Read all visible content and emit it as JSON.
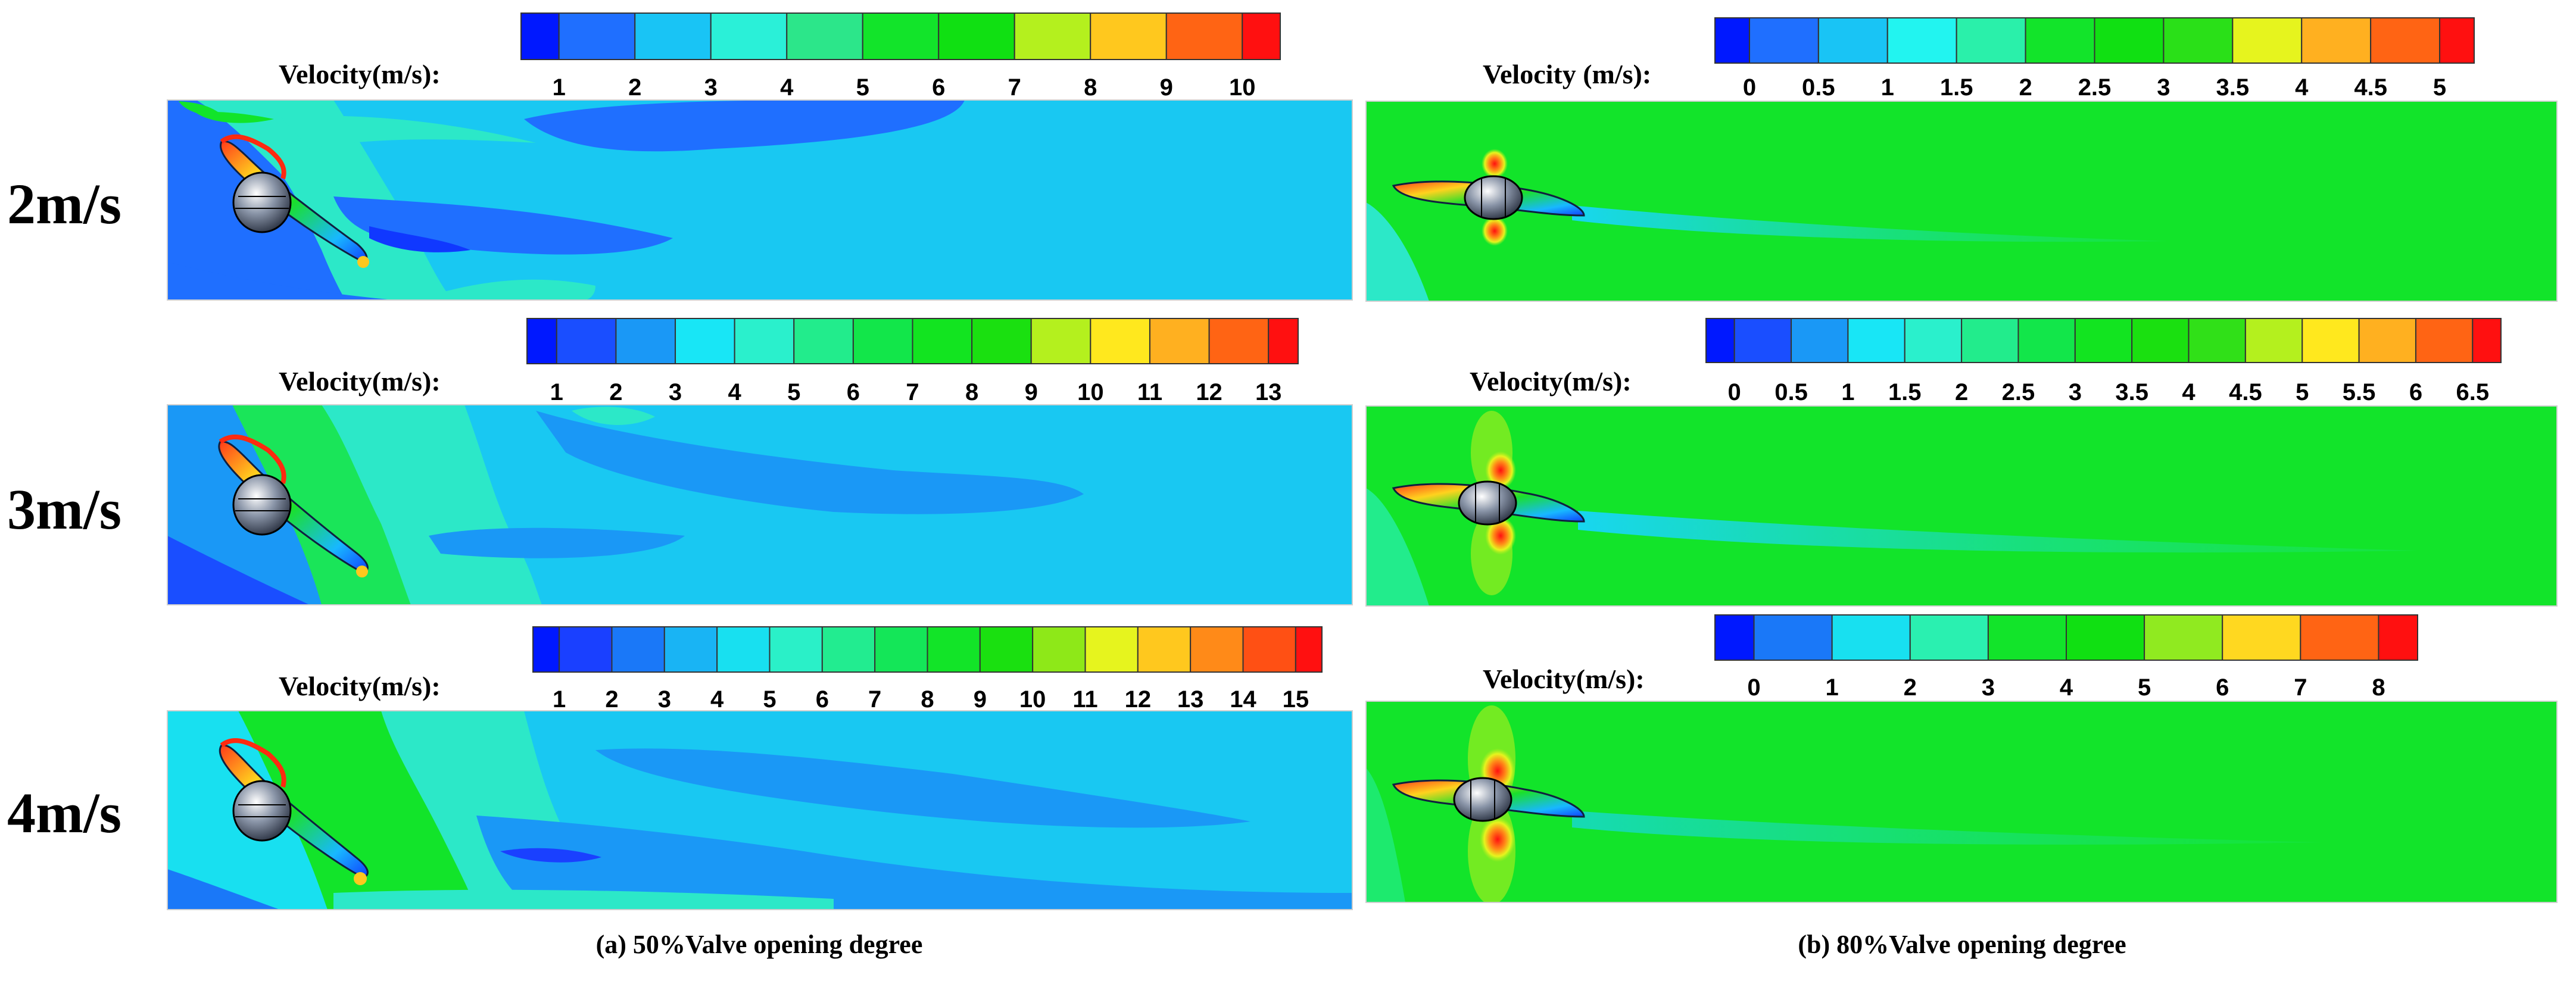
{
  "figure": {
    "columns": [
      {
        "caption": "(a) 50%Valve opening degree",
        "panels": [
          {
            "inlet_velocity": "2m/s",
            "colorbar_title": "Velocity(m/s):",
            "colorbar_ticks": [
              "1",
              "2",
              "3",
              "4",
              "5",
              "6",
              "7",
              "8",
              "9",
              "10"
            ],
            "colorbar_colors": [
              "#0018ff",
              "#1f6fff",
              "#19c4f5",
              "#2af0d8",
              "#2ce68a",
              "#12e42a",
              "#10e012",
              "#b4f01e",
              "#ffc81e",
              "#ff6414",
              "#ff1010"
            ]
          },
          {
            "inlet_velocity": "3m/s",
            "colorbar_title": "Velocity(m/s):",
            "colorbar_ticks": [
              "1",
              "2",
              "3",
              "4",
              "5",
              "6",
              "7",
              "8",
              "9",
              "10",
              "11",
              "12",
              "13"
            ],
            "colorbar_colors": [
              "#0018ff",
              "#1a4eff",
              "#1a98f6",
              "#18e6f6",
              "#2af0cc",
              "#22ec8c",
              "#12e64a",
              "#12e420",
              "#1ae010",
              "#b4f01e",
              "#ffe81e",
              "#ffb020",
              "#ff6414",
              "#ff1010"
            ]
          },
          {
            "inlet_velocity": "4m/s",
            "colorbar_title": "Velocity(m/s):",
            "colorbar_ticks": [
              "1",
              "2",
              "3",
              "4",
              "5",
              "6",
              "7",
              "8",
              "9",
              "10",
              "11",
              "12",
              "13",
              "14",
              "15"
            ],
            "colorbar_colors": [
              "#0018ff",
              "#1a40ff",
              "#1a78f8",
              "#19b4f4",
              "#18e0f0",
              "#2af0c8",
              "#22ec90",
              "#14e658",
              "#12e428",
              "#1ae010",
              "#8ee818",
              "#e6f41e",
              "#ffc81e",
              "#ff8a18",
              "#ff5014",
              "#ff1010"
            ]
          }
        ]
      },
      {
        "caption": "(b) 80%Valve opening degree",
        "panels": [
          {
            "inlet_velocity": "",
            "colorbar_title": "Velocity (m/s):",
            "colorbar_ticks": [
              "0",
              "0.5",
              "1",
              "1.5",
              "2",
              "2.5",
              "3",
              "3.5",
              "4",
              "4.5",
              "5"
            ],
            "colorbar_colors": [
              "#0018ff",
              "#1f6fff",
              "#19c4f5",
              "#22f4f0",
              "#2af0aa",
              "#12e42a",
              "#10e012",
              "#2ae018",
              "#e6f41e",
              "#ffb020",
              "#ff6414",
              "#ff1010"
            ]
          },
          {
            "inlet_velocity": "",
            "colorbar_title": "Velocity(m/s):",
            "colorbar_ticks": [
              "0",
              "0.5",
              "1",
              "1.5",
              "2",
              "2.5",
              "3",
              "3.5",
              "4",
              "4.5",
              "5",
              "5.5",
              "6",
              "6.5"
            ],
            "colorbar_colors": [
              "#0018ff",
              "#1a4eff",
              "#1a98f6",
              "#18e6f6",
              "#2af0cc",
              "#22ec8c",
              "#12e64a",
              "#12e420",
              "#1ae010",
              "#30e018",
              "#b4f01e",
              "#ffe81e",
              "#ffb020",
              "#ff6414",
              "#ff1010"
            ]
          },
          {
            "inlet_velocity": "",
            "colorbar_title": "Velocity(m/s):",
            "colorbar_ticks": [
              "0",
              "1",
              "2",
              "3",
              "4",
              "5",
              "6",
              "7",
              "8"
            ],
            "colorbar_colors": [
              "#0018ff",
              "#1a78f8",
              "#18e0f0",
              "#2af0b0",
              "#12e42a",
              "#10e012",
              "#90ea20",
              "#ffd820",
              "#ff6414",
              "#ff1010"
            ]
          }
        ]
      }
    ]
  }
}
